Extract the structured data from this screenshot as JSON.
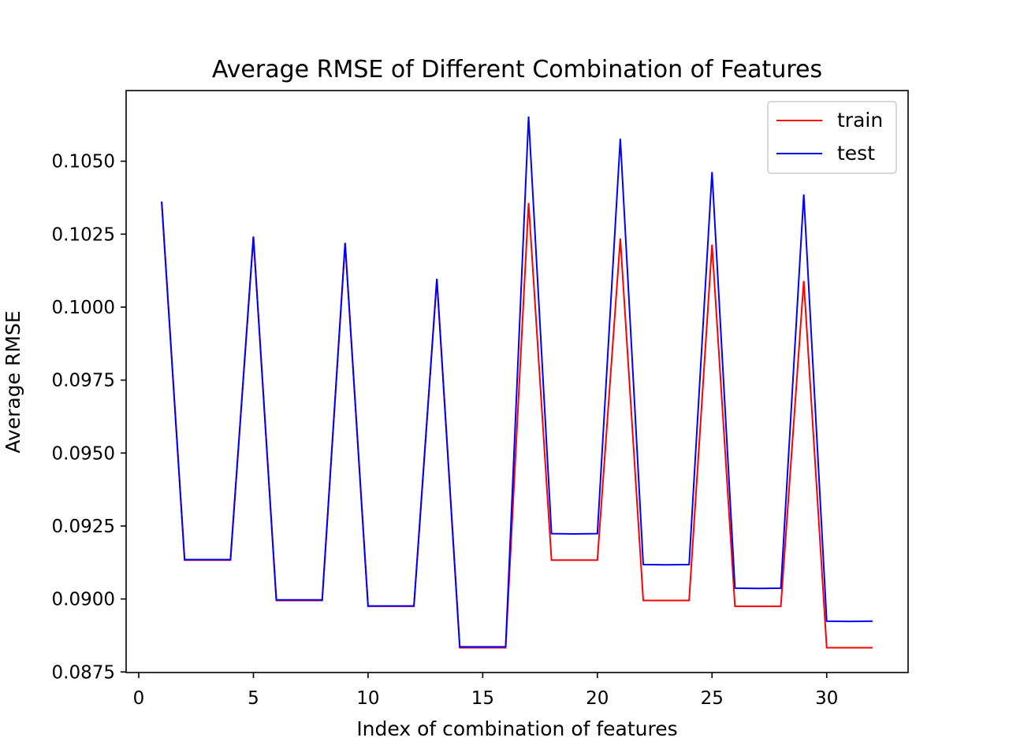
{
  "chart_data": {
    "type": "line",
    "title": "Average RMSE of Different Combination of Features",
    "xlabel": "Index of combination of features",
    "ylabel": "Average RMSE",
    "xlim": [
      -0.55,
      33.55
    ],
    "ylim": [
      0.08748,
      0.10742
    ],
    "xticks": [
      0,
      5,
      10,
      15,
      20,
      25,
      30
    ],
    "xtick_labels": [
      "0",
      "5",
      "10",
      "15",
      "20",
      "25",
      "30"
    ],
    "yticks": [
      0.0875,
      0.09,
      0.0925,
      0.095,
      0.0975,
      0.1,
      0.1025,
      0.105
    ],
    "ytick_labels": [
      "0.0875",
      "0.0900",
      "0.0925",
      "0.0950",
      "0.0975",
      "0.1000",
      "0.1025",
      "0.1050"
    ],
    "grid": false,
    "legend_position": "upper right",
    "x": [
      1,
      2,
      3,
      4,
      5,
      6,
      7,
      8,
      9,
      10,
      11,
      12,
      13,
      14,
      15,
      16,
      17,
      18,
      19,
      20,
      21,
      22,
      23,
      24,
      25,
      26,
      27,
      28,
      29,
      30,
      31,
      32
    ],
    "series": [
      {
        "name": "train",
        "color": "#ff0000",
        "values": [
          0.10361,
          0.09133,
          0.09133,
          0.09133,
          0.10241,
          0.08995,
          0.08995,
          0.08995,
          0.10219,
          0.08975,
          0.08975,
          0.08975,
          0.10095,
          0.08833,
          0.08833,
          0.08833,
          0.10357,
          0.09133,
          0.09133,
          0.09133,
          0.10235,
          0.08995,
          0.08995,
          0.08995,
          0.10214,
          0.08975,
          0.08975,
          0.08975,
          0.1009,
          0.08833,
          0.08833,
          0.08833
        ]
      },
      {
        "name": "test",
        "color": "#0000ff",
        "values": [
          0.10362,
          0.09135,
          0.09135,
          0.09135,
          0.10242,
          0.08997,
          0.08997,
          0.08997,
          0.1022,
          0.08976,
          0.08976,
          0.08976,
          0.10097,
          0.08836,
          0.08836,
          0.08836,
          0.10653,
          0.09224,
          0.09223,
          0.09224,
          0.10577,
          0.09118,
          0.09117,
          0.09118,
          0.10463,
          0.09037,
          0.09036,
          0.09037,
          0.10386,
          0.08924,
          0.08923,
          0.08924
        ]
      }
    ]
  }
}
